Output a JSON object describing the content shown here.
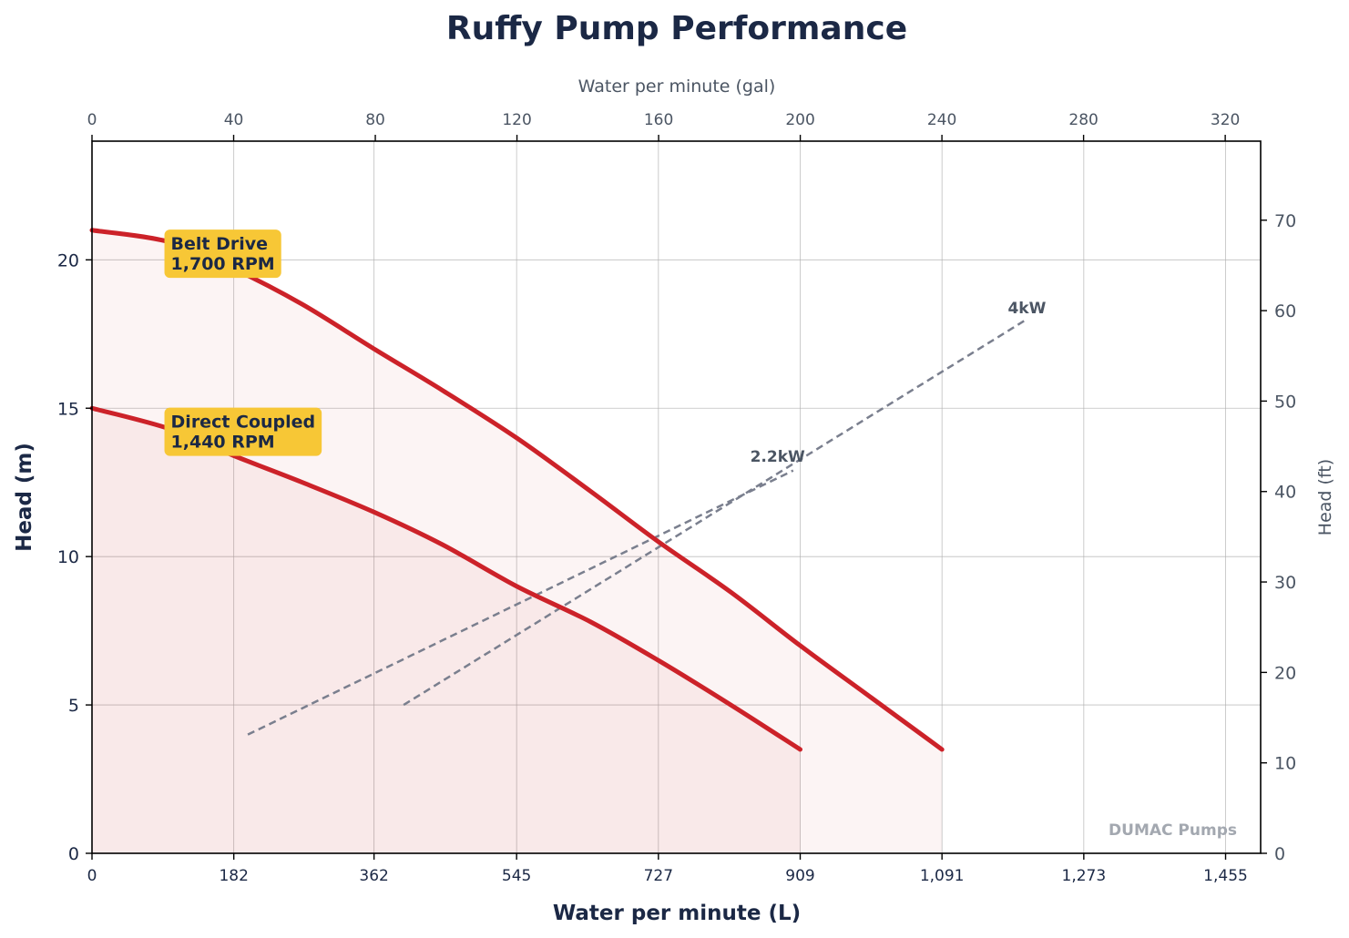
{
  "chart_data": {
    "type": "line",
    "title": "Ruffy Pump Performance",
    "xlabel": "Water per minute (L)",
    "ylabel": "Head (m)",
    "x2label": "Water per minute (gal)",
    "y2label": "Head (ft)",
    "xlim": [
      0,
      1500
    ],
    "ylim": [
      0,
      24
    ],
    "y2lim": [
      0,
      78.74
    ],
    "x2lim": [
      0,
      330
    ],
    "grid": true,
    "xticks": [
      0,
      182,
      362,
      545,
      727,
      909,
      1091,
      1273,
      1455
    ],
    "xtick_labels": [
      "0",
      "182",
      "362",
      "545",
      "727",
      "909",
      "1,091",
      "1,273",
      "1,455"
    ],
    "yticks": [
      0,
      5,
      10,
      15,
      20
    ],
    "yticks_labels": [
      "0",
      "5",
      "10",
      "15",
      "20"
    ],
    "x2ticks": [
      0,
      40,
      80,
      120,
      160,
      200,
      240,
      280,
      320
    ],
    "x2tick_labels": [
      "0",
      "40",
      "80",
      "120",
      "160",
      "200",
      "240",
      "280",
      "320"
    ],
    "y2ticks": [
      0,
      10,
      20,
      30,
      40,
      50,
      60,
      70
    ],
    "y2tick_labels": [
      "0",
      "10",
      "20",
      "30",
      "40",
      "50",
      "60",
      "70"
    ],
    "series": [
      {
        "name": "Belt Drive",
        "color": "#cc2229",
        "x": [
          0,
          100,
          182,
          270,
          362,
          450,
          545,
          640,
          727,
          820,
          909,
          1000,
          1091
        ],
        "y": [
          21.0,
          20.6,
          19.7,
          18.5,
          17.0,
          15.6,
          14.0,
          12.2,
          10.5,
          8.8,
          7.0,
          5.25,
          3.5
        ]
      },
      {
        "name": "Direct Coupled",
        "color": "#cc2229",
        "x": [
          0,
          100,
          182,
          270,
          362,
          450,
          545,
          640,
          727,
          820,
          909
        ],
        "y": [
          15.0,
          14.3,
          13.4,
          12.5,
          11.5,
          10.4,
          9.0,
          7.8,
          6.5,
          5.0,
          3.5
        ]
      }
    ],
    "power_lines": [
      {
        "label": "2.2kW",
        "x": [
          200,
          900
        ],
        "y": [
          4.0,
          12.9
        ],
        "color": "#7a7f8e"
      },
      {
        "label": "4kW",
        "x": [
          400,
          1200
        ],
        "y": [
          5.0,
          18.0
        ],
        "color": "#7a7f8e"
      }
    ],
    "annotations": [
      {
        "line1": "Belt Drive",
        "line2": "1,700 RPM",
        "x": 100,
        "y": 20.1,
        "bg": "#f7c736"
      },
      {
        "line1": "Direct Coupled",
        "line2": "1,440 RPM",
        "x": 100,
        "y": 14.1,
        "bg": "#f7c736"
      }
    ],
    "power_labels": [
      {
        "text": "2.2kW",
        "x": 880,
        "y": 13.2
      },
      {
        "text": "4kW",
        "x": 1200,
        "y": 18.2
      }
    ],
    "watermark": "DUMAC Pumps",
    "fill_color": "#cc2229"
  }
}
